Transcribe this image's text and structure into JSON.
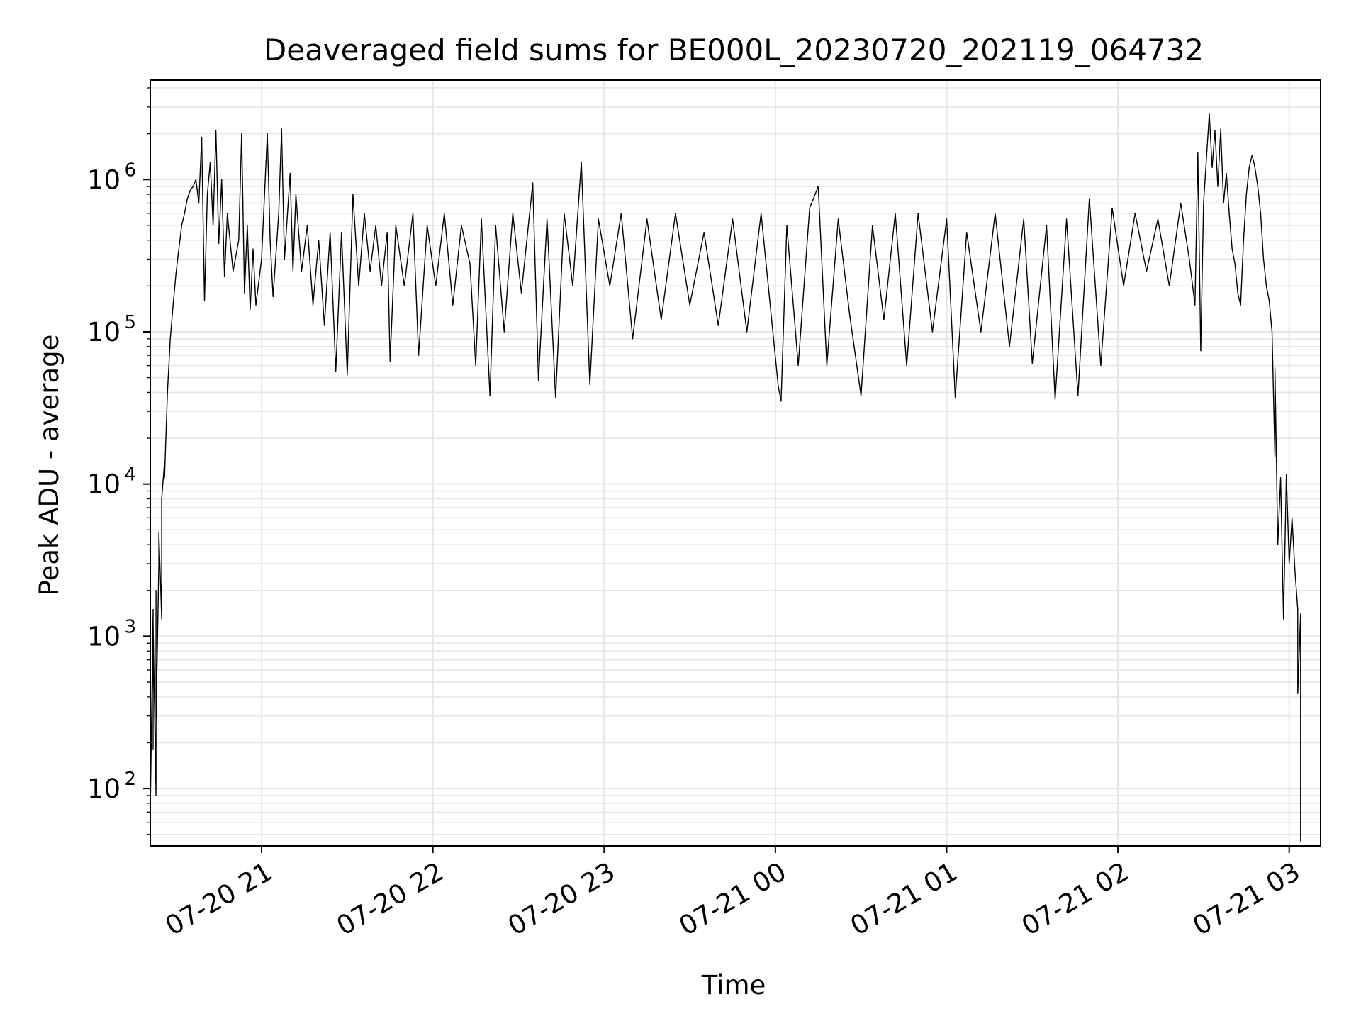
{
  "chart_data": {
    "type": "line",
    "title": "Deaveraged field sums for BE000L_20230720_202119_064732",
    "xlabel": "Time",
    "ylabel": "Peak ADU - average",
    "yscale": "log",
    "ylim": [
      42,
      4500000
    ],
    "xlim": [
      "2023-07-20 20:21:00",
      "2023-07-21 03:11:00"
    ],
    "grid": true,
    "line_color": "#000000",
    "grid_color": "#e6e6e6",
    "x_ticks": [
      {
        "time": "2023-07-20 21:00",
        "label": "07-20 21"
      },
      {
        "time": "2023-07-20 22:00",
        "label": "07-20 22"
      },
      {
        "time": "2023-07-20 23:00",
        "label": "07-20 23"
      },
      {
        "time": "2023-07-21 00:00",
        "label": "07-21 00"
      },
      {
        "time": "2023-07-21 01:00",
        "label": "07-21 01"
      },
      {
        "time": "2023-07-21 02:00",
        "label": "07-21 02"
      },
      {
        "time": "2023-07-21 03:00",
        "label": "07-21 03"
      }
    ],
    "y_ticks": [
      {
        "value": 100,
        "base": "10",
        "exp": "2"
      },
      {
        "value": 1000,
        "base": "10",
        "exp": "3"
      },
      {
        "value": 10000,
        "base": "10",
        "exp": "4"
      },
      {
        "value": 100000,
        "base": "10",
        "exp": "5"
      },
      {
        "value": 1000000,
        "base": "10",
        "exp": "6"
      }
    ],
    "series": [
      {
        "points": [
          [
            "2023-07-20 20:21",
            45
          ],
          [
            "2023-07-20 20:21",
            4300
          ],
          [
            "2023-07-20 20:21",
            70
          ],
          [
            "2023-07-20 20:22",
            1500
          ],
          [
            "2023-07-20 20:22",
            180
          ],
          [
            "2023-07-20 20:22",
            1200
          ],
          [
            "2023-07-20 20:23",
            90
          ],
          [
            "2023-07-20 20:23",
            2000
          ],
          [
            "2023-07-20 20:23",
            270
          ],
          [
            "2023-07-20 20:24",
            3000
          ],
          [
            "2023-07-20 20:24",
            4800
          ],
          [
            "2023-07-20 20:25",
            1300
          ],
          [
            "2023-07-20 20:25",
            8000
          ],
          [
            "2023-07-20 20:26",
            14000
          ],
          [
            "2023-07-20 20:26",
            11000
          ],
          [
            "2023-07-20 20:27",
            40000
          ],
          [
            "2023-07-20 20:28",
            90000
          ],
          [
            "2023-07-20 20:29",
            150000
          ],
          [
            "2023-07-20 20:30",
            240000
          ],
          [
            "2023-07-20 20:31",
            350000
          ],
          [
            "2023-07-20 20:32",
            500000
          ],
          [
            "2023-07-20 20:33",
            600000
          ],
          [
            "2023-07-20 20:34",
            750000
          ],
          [
            "2023-07-20 20:35",
            850000
          ],
          [
            "2023-07-20 20:36",
            900000
          ],
          [
            "2023-07-20 20:37",
            1000000
          ],
          [
            "2023-07-20 20:38",
            700000
          ],
          [
            "2023-07-20 20:39",
            1900000
          ],
          [
            "2023-07-20 20:40",
            160000
          ],
          [
            "2023-07-20 20:41",
            800000
          ],
          [
            "2023-07-20 20:42",
            1300000
          ],
          [
            "2023-07-20 20:43",
            500000
          ],
          [
            "2023-07-20 20:44",
            2100000
          ],
          [
            "2023-07-20 20:45",
            380000
          ],
          [
            "2023-07-20 20:46",
            1000000
          ],
          [
            "2023-07-20 20:47",
            230000
          ],
          [
            "2023-07-20 20:48",
            600000
          ],
          [
            "2023-07-20 20:50",
            250000
          ],
          [
            "2023-07-20 20:52",
            400000
          ],
          [
            "2023-07-20 20:53",
            2000000
          ],
          [
            "2023-07-20 20:54",
            180000
          ],
          [
            "2023-07-20 20:55",
            500000
          ],
          [
            "2023-07-20 20:56",
            140000
          ],
          [
            "2023-07-20 20:57",
            350000
          ],
          [
            "2023-07-20 20:58",
            150000
          ],
          [
            "2023-07-20 21:00",
            300000
          ],
          [
            "2023-07-20 21:02",
            2000000
          ],
          [
            "2023-07-20 21:03",
            400000
          ],
          [
            "2023-07-20 21:04",
            170000
          ],
          [
            "2023-07-20 21:06",
            600000
          ],
          [
            "2023-07-20 21:07",
            2150000
          ],
          [
            "2023-07-20 21:08",
            300000
          ],
          [
            "2023-07-20 21:10",
            1100000
          ],
          [
            "2023-07-20 21:11",
            250000
          ],
          [
            "2023-07-20 21:12",
            800000
          ],
          [
            "2023-07-20 21:14",
            250000
          ],
          [
            "2023-07-20 21:16",
            500000
          ],
          [
            "2023-07-20 21:18",
            150000
          ],
          [
            "2023-07-20 21:20",
            400000
          ],
          [
            "2023-07-20 21:22",
            110000
          ],
          [
            "2023-07-20 21:24",
            450000
          ],
          [
            "2023-07-20 21:26",
            55000
          ],
          [
            "2023-07-20 21:28",
            450000
          ],
          [
            "2023-07-20 21:30",
            52000
          ],
          [
            "2023-07-20 21:32",
            800000
          ],
          [
            "2023-07-20 21:34",
            200000
          ],
          [
            "2023-07-20 21:36",
            600000
          ],
          [
            "2023-07-20 21:38",
            250000
          ],
          [
            "2023-07-20 21:40",
            500000
          ],
          [
            "2023-07-20 21:42",
            200000
          ],
          [
            "2023-07-20 21:44",
            450000
          ],
          [
            "2023-07-20 21:45",
            64000
          ],
          [
            "2023-07-20 21:47",
            500000
          ],
          [
            "2023-07-20 21:50",
            200000
          ],
          [
            "2023-07-20 21:53",
            600000
          ],
          [
            "2023-07-20 21:55",
            70000
          ],
          [
            "2023-07-20 21:58",
            500000
          ],
          [
            "2023-07-20 22:01",
            200000
          ],
          [
            "2023-07-20 22:04",
            600000
          ],
          [
            "2023-07-20 22:07",
            150000
          ],
          [
            "2023-07-20 22:10",
            500000
          ],
          [
            "2023-07-20 22:13",
            280000
          ],
          [
            "2023-07-20 22:15",
            60000
          ],
          [
            "2023-07-20 22:17",
            550000
          ],
          [
            "2023-07-20 22:20",
            38000
          ],
          [
            "2023-07-20 22:22",
            500000
          ],
          [
            "2023-07-20 22:25",
            100000
          ],
          [
            "2023-07-20 22:28",
            600000
          ],
          [
            "2023-07-20 22:31",
            180000
          ],
          [
            "2023-07-20 22:35",
            950000
          ],
          [
            "2023-07-20 22:37",
            48000
          ],
          [
            "2023-07-20 22:40",
            550000
          ],
          [
            "2023-07-20 22:43",
            37000
          ],
          [
            "2023-07-20 22:46",
            600000
          ],
          [
            "2023-07-20 22:49",
            200000
          ],
          [
            "2023-07-20 22:52",
            1300000
          ],
          [
            "2023-07-20 22:55",
            45000
          ],
          [
            "2023-07-20 22:58",
            550000
          ],
          [
            "2023-07-20 23:02",
            200000
          ],
          [
            "2023-07-20 23:06",
            600000
          ],
          [
            "2023-07-20 23:10",
            90000
          ],
          [
            "2023-07-20 23:15",
            550000
          ],
          [
            "2023-07-20 23:20",
            120000
          ],
          [
            "2023-07-20 23:25",
            600000
          ],
          [
            "2023-07-20 23:30",
            150000
          ],
          [
            "2023-07-20 23:35",
            450000
          ],
          [
            "2023-07-20 23:40",
            110000
          ],
          [
            "2023-07-20 23:45",
            550000
          ],
          [
            "2023-07-20 23:50",
            100000
          ],
          [
            "2023-07-20 23:55",
            600000
          ],
          [
            "2023-07-21 00:01",
            44000
          ],
          [
            "2023-07-21 00:02",
            35000
          ],
          [
            "2023-07-21 00:04",
            500000
          ],
          [
            "2023-07-21 00:08",
            60000
          ],
          [
            "2023-07-21 00:12",
            650000
          ],
          [
            "2023-07-21 00:15",
            900000
          ],
          [
            "2023-07-21 00:18",
            60000
          ],
          [
            "2023-07-21 00:22",
            550000
          ],
          [
            "2023-07-21 00:26",
            130000
          ],
          [
            "2023-07-21 00:30",
            38000
          ],
          [
            "2023-07-21 00:34",
            500000
          ],
          [
            "2023-07-21 00:38",
            120000
          ],
          [
            "2023-07-21 00:42",
            600000
          ],
          [
            "2023-07-21 00:46",
            60000
          ],
          [
            "2023-07-21 00:50",
            600000
          ],
          [
            "2023-07-21 00:55",
            100000
          ],
          [
            "2023-07-21 01:00",
            550000
          ],
          [
            "2023-07-21 01:03",
            37000
          ],
          [
            "2023-07-21 01:07",
            450000
          ],
          [
            "2023-07-21 01:12",
            100000
          ],
          [
            "2023-07-21 01:17",
            600000
          ],
          [
            "2023-07-21 01:22",
            80000
          ],
          [
            "2023-07-21 01:27",
            550000
          ],
          [
            "2023-07-21 01:30",
            62000
          ],
          [
            "2023-07-21 01:35",
            500000
          ],
          [
            "2023-07-21 01:38",
            36000
          ],
          [
            "2023-07-21 01:42",
            550000
          ],
          [
            "2023-07-21 01:46",
            38000
          ],
          [
            "2023-07-21 01:50",
            750000
          ],
          [
            "2023-07-21 01:54",
            60000
          ],
          [
            "2023-07-21 01:58",
            650000
          ],
          [
            "2023-07-21 02:02",
            200000
          ],
          [
            "2023-07-21 02:06",
            600000
          ],
          [
            "2023-07-21 02:10",
            250000
          ],
          [
            "2023-07-21 02:14",
            550000
          ],
          [
            "2023-07-21 02:18",
            200000
          ],
          [
            "2023-07-21 02:22",
            700000
          ],
          [
            "2023-07-21 02:25",
            300000
          ],
          [
            "2023-07-21 02:27",
            150000
          ],
          [
            "2023-07-21 02:28",
            1500000
          ],
          [
            "2023-07-21 02:29",
            75000
          ],
          [
            "2023-07-21 02:30",
            700000
          ],
          [
            "2023-07-21 02:32",
            2700000
          ],
          [
            "2023-07-21 02:33",
            1200000
          ],
          [
            "2023-07-21 02:34",
            2100000
          ],
          [
            "2023-07-21 02:35",
            900000
          ],
          [
            "2023-07-21 02:36",
            2150000
          ],
          [
            "2023-07-21 02:37",
            700000
          ],
          [
            "2023-07-21 02:38",
            1100000
          ],
          [
            "2023-07-21 02:39",
            600000
          ],
          [
            "2023-07-21 02:40",
            350000
          ],
          [
            "2023-07-21 02:41",
            280000
          ],
          [
            "2023-07-21 02:42",
            180000
          ],
          [
            "2023-07-21 02:43",
            150000
          ],
          [
            "2023-07-21 02:44",
            400000
          ],
          [
            "2023-07-21 02:45",
            800000
          ],
          [
            "2023-07-21 02:46",
            1200000
          ],
          [
            "2023-07-21 02:47",
            1450000
          ],
          [
            "2023-07-21 02:48",
            1200000
          ],
          [
            "2023-07-21 02:49",
            900000
          ],
          [
            "2023-07-21 02:50",
            600000
          ],
          [
            "2023-07-21 02:51",
            300000
          ],
          [
            "2023-07-21 02:52",
            200000
          ],
          [
            "2023-07-21 02:53",
            160000
          ],
          [
            "2023-07-21 02:54",
            100000
          ],
          [
            "2023-07-21 02:55",
            15000
          ],
          [
            "2023-07-21 02:55",
            58000
          ],
          [
            "2023-07-21 02:56",
            4000
          ],
          [
            "2023-07-21 02:57",
            11000
          ],
          [
            "2023-07-21 02:58",
            1300
          ],
          [
            "2023-07-21 02:59",
            11500
          ],
          [
            "2023-07-21 03:00",
            3000
          ],
          [
            "2023-07-21 03:01",
            6000
          ],
          [
            "2023-07-21 03:02",
            2700
          ],
          [
            "2023-07-21 03:03",
            1500
          ],
          [
            "2023-07-21 03:03",
            420
          ],
          [
            "2023-07-21 03:04",
            1400
          ],
          [
            "2023-07-21 03:04",
            45
          ]
        ]
      }
    ]
  }
}
